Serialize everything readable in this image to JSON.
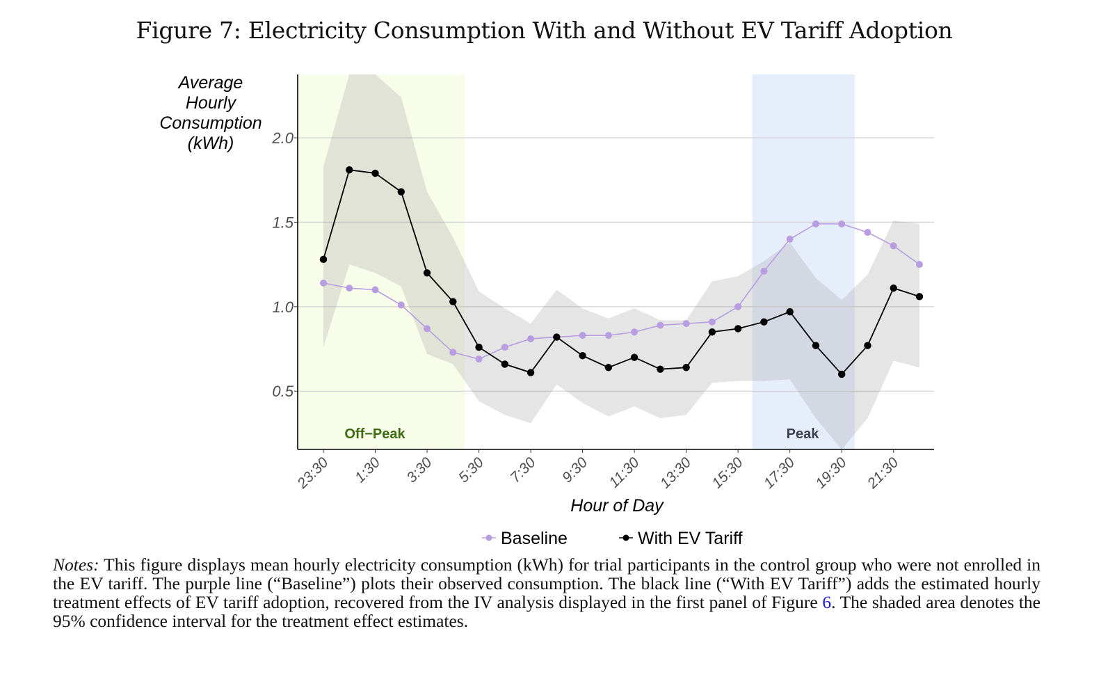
{
  "figure": {
    "title": "Figure 7: Electricity Consumption With and Without EV Tariff Adoption",
    "notes_label": "Notes:",
    "notes_text_before_ref": " This figure displays mean hourly electricity consumption (kWh) for trial participants in the control group who were not enrolled in the EV tariff. The purple line (“Baseline”) plots their observed consumption. The black line (“With EV Tariff”) adds the estimated hourly treatment effects of EV tariff adoption, recovered from the IV analysis displayed in the first panel of Figure ",
    "notes_ref": "6",
    "notes_text_after_ref": ". The shaded area denotes the 95% confidence interval for the treatment effect estimates."
  },
  "chart_data": {
    "type": "line",
    "title": "Figure 7: Electricity Consumption With and Without EV Tariff Adoption",
    "xlabel": "Hour of Day",
    "ylabel": [
      "Average",
      "Hourly",
      "Consumption",
      "(kWh)"
    ],
    "x": [
      "23:30",
      "0:30",
      "1:30",
      "2:30",
      "3:30",
      "4:30",
      "5:30",
      "6:30",
      "7:30",
      "8:30",
      "9:30",
      "10:30",
      "11:30",
      "12:30",
      "13:30",
      "14:30",
      "15:30",
      "16:30",
      "17:30",
      "18:30",
      "19:30",
      "20:30",
      "21:30",
      "22:30"
    ],
    "x_tick_labels": [
      "23:30",
      "1:30",
      "3:30",
      "5:30",
      "7:30",
      "9:30",
      "11:30",
      "13:30",
      "15:30",
      "17:30",
      "19:30",
      "21:30"
    ],
    "y_ticks": [
      0.5,
      1.0,
      1.5,
      2.0
    ],
    "y_tick_labels": [
      "0.5",
      "1.0",
      "1.5",
      "2.0"
    ],
    "ylim": [
      0.155,
      2.375
    ],
    "grid": "horizontal",
    "legend_position": "bottom",
    "series": [
      {
        "name": "Baseline",
        "color": "#b89de0",
        "values": [
          1.14,
          1.11,
          1.1,
          1.01,
          0.87,
          0.73,
          0.69,
          0.76,
          0.81,
          0.82,
          0.83,
          0.83,
          0.85,
          0.89,
          0.9,
          0.91,
          1.0,
          1.21,
          1.4,
          1.49,
          1.49,
          1.44,
          1.36,
          1.25
        ]
      },
      {
        "name": "With EV Tariff",
        "color": "#000000",
        "values": [
          1.28,
          1.81,
          1.79,
          1.68,
          1.2,
          1.03,
          0.76,
          0.66,
          0.61,
          0.82,
          0.71,
          0.64,
          0.7,
          0.63,
          0.64,
          0.85,
          0.87,
          0.91,
          0.97,
          0.77,
          0.6,
          0.77,
          1.11,
          1.06
        ]
      }
    ],
    "confidence_band": {
      "name": "95% CI",
      "color": "#999999",
      "upper": [
        1.83,
        2.5,
        2.38,
        2.24,
        1.68,
        1.41,
        1.09,
        0.99,
        0.9,
        1.1,
        0.99,
        0.93,
        0.99,
        0.92,
        0.92,
        1.15,
        1.18,
        1.27,
        1.38,
        1.17,
        1.04,
        1.19,
        1.51,
        1.49
      ],
      "lower": [
        0.76,
        1.25,
        1.2,
        1.12,
        0.72,
        0.66,
        0.44,
        0.36,
        0.31,
        0.54,
        0.43,
        0.35,
        0.41,
        0.34,
        0.36,
        0.55,
        0.56,
        0.56,
        0.57,
        0.34,
        0.15,
        0.34,
        0.68,
        0.64
      ]
    },
    "regions": [
      {
        "label": "Off−Peak",
        "from_index": -0.95,
        "to_index": 5.45,
        "fill": "#f8fdea",
        "text_color": "#3d6b12"
      },
      {
        "label": "Peak",
        "from_index": 16.55,
        "to_index": 20.5,
        "fill": "#e7eefb",
        "text_color": "#3a3f50"
      }
    ]
  }
}
